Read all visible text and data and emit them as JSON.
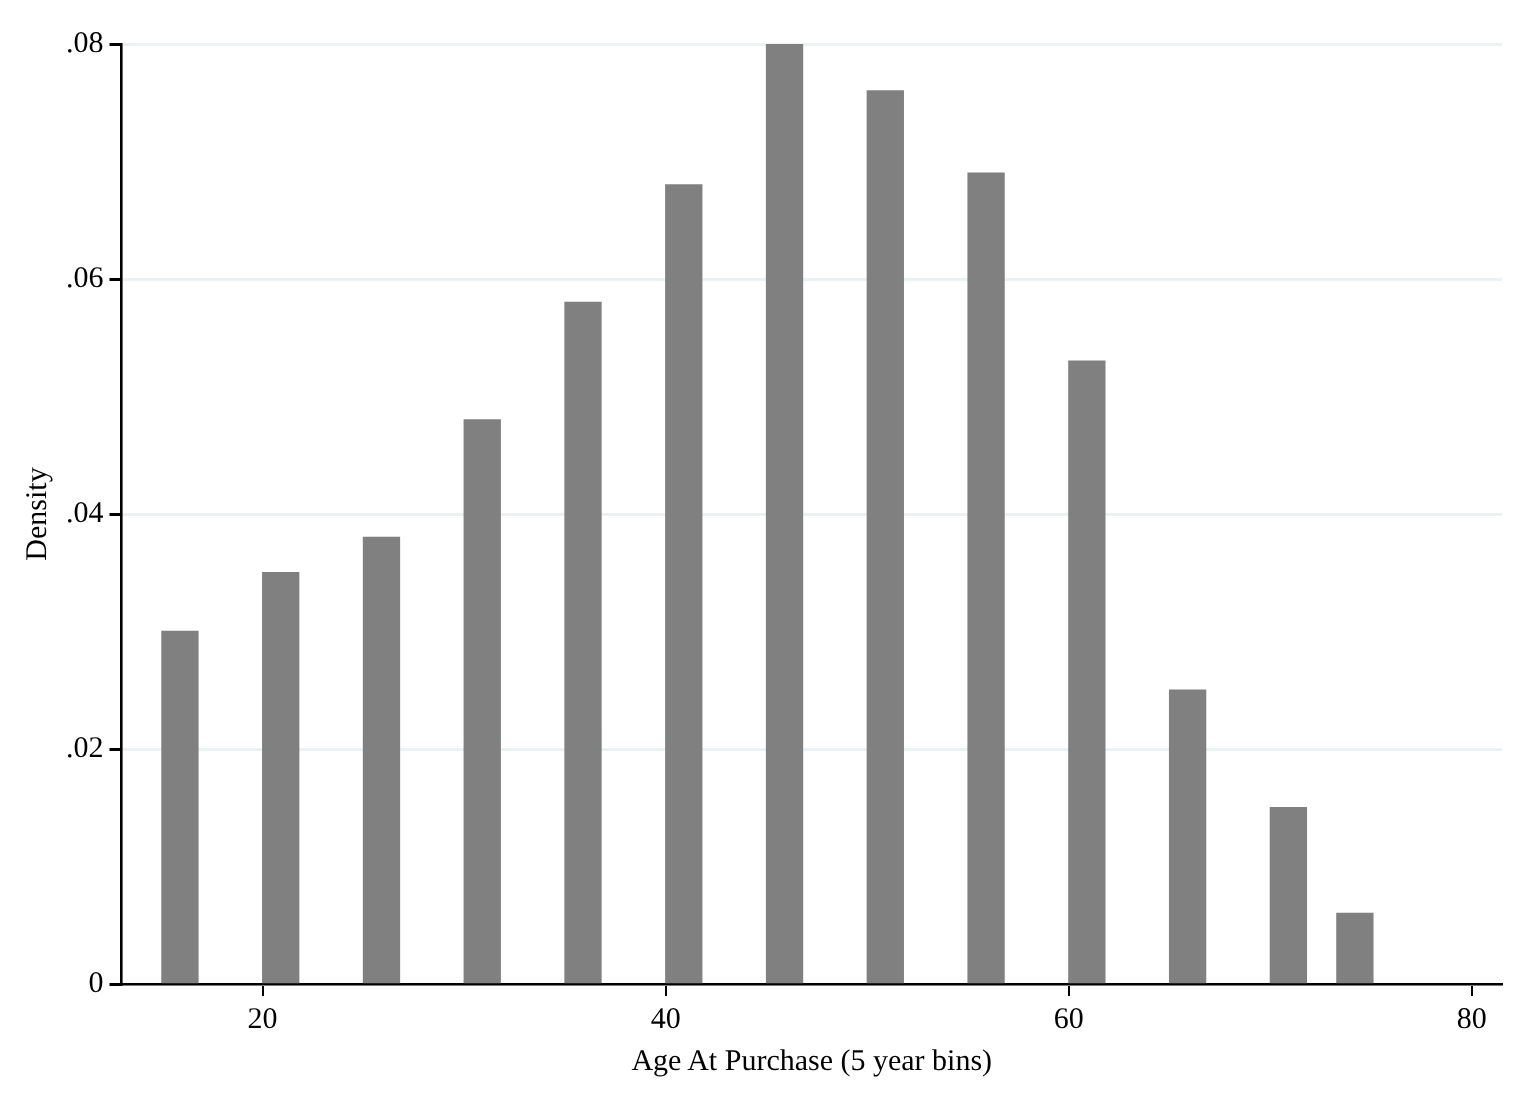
{
  "chart_data": {
    "type": "bar",
    "xlabel": "Age At Purchase (5 year bins)",
    "ylabel": "Density",
    "x": [
      15.9,
      20.9,
      25.9,
      30.9,
      35.9,
      40.9,
      45.9,
      50.9,
      55.9,
      60.9,
      65.9,
      70.9,
      74.2
    ],
    "values": [
      0.03,
      0.035,
      0.038,
      0.048,
      0.058,
      0.068,
      0.08,
      0.076,
      0.069,
      0.053,
      0.025,
      0.015,
      0.006
    ],
    "color": "#808080",
    "xlim": [
      13,
      81.5
    ],
    "xticks": [
      20,
      40,
      60,
      80
    ],
    "ylim": [
      0,
      0.08
    ],
    "yticks": [
      {
        "value": 0,
        "label": "0"
      },
      {
        "value": 0.02,
        "label": ".02"
      },
      {
        "value": 0.04,
        "label": ".04"
      },
      {
        "value": 0.06,
        "label": ".06"
      },
      {
        "value": 0.08,
        "label": ".08"
      }
    ],
    "grid": "y"
  }
}
